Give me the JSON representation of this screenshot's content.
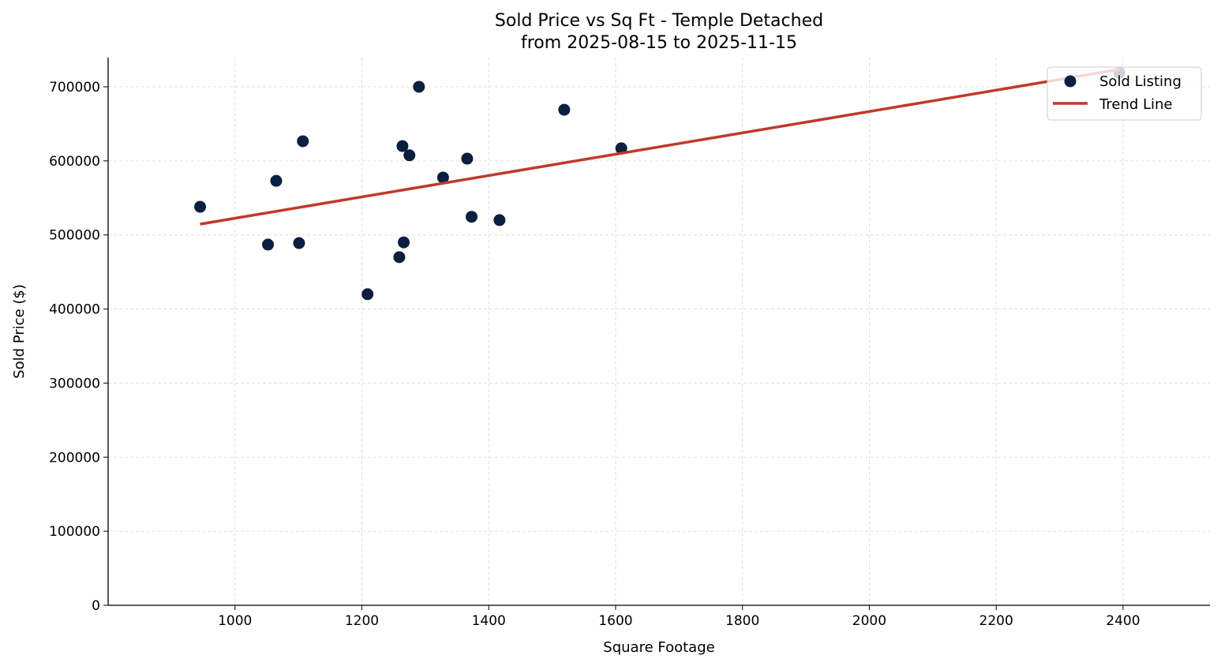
{
  "chart_data": {
    "type": "scatter",
    "title": "Sold Price vs Sq Ft - Temple Detached",
    "subtitle": "from 2025-08-15 to 2025-11-15",
    "xlabel": "Square Footage",
    "ylabel": "Sold Price ($)",
    "xlim": [
      800,
      2537
    ],
    "ylim": [
      0,
      739400
    ],
    "xticks": [
      1000,
      1200,
      1400,
      1600,
      1800,
      2000,
      2200,
      2400
    ],
    "yticks": [
      0,
      100000,
      200000,
      300000,
      400000,
      500000,
      600000,
      700000
    ],
    "grid": true,
    "legend_position": "top-right",
    "series": [
      {
        "name": "Sold Listing",
        "kind": "scatter",
        "color": "#0b1f3f",
        "points": [
          [
            945,
            538000
          ],
          [
            1052,
            487000
          ],
          [
            1065,
            573000
          ],
          [
            1101,
            489000
          ],
          [
            1107,
            626500
          ],
          [
            1209,
            420000
          ],
          [
            1259,
            470000
          ],
          [
            1264,
            620000
          ],
          [
            1266,
            490000
          ],
          [
            1275,
            607500
          ],
          [
            1290,
            700000
          ],
          [
            1328,
            577500
          ],
          [
            1366,
            603000
          ],
          [
            1373,
            524500
          ],
          [
            1417,
            520000
          ],
          [
            1519,
            669000
          ],
          [
            1609,
            617000
          ],
          [
            2394,
            719000
          ]
        ]
      },
      {
        "name": "Trend Line",
        "kind": "line",
        "color": "#c0392b",
        "points": [
          [
            945,
            514600
          ],
          [
            2394,
            723400
          ]
        ]
      }
    ]
  }
}
